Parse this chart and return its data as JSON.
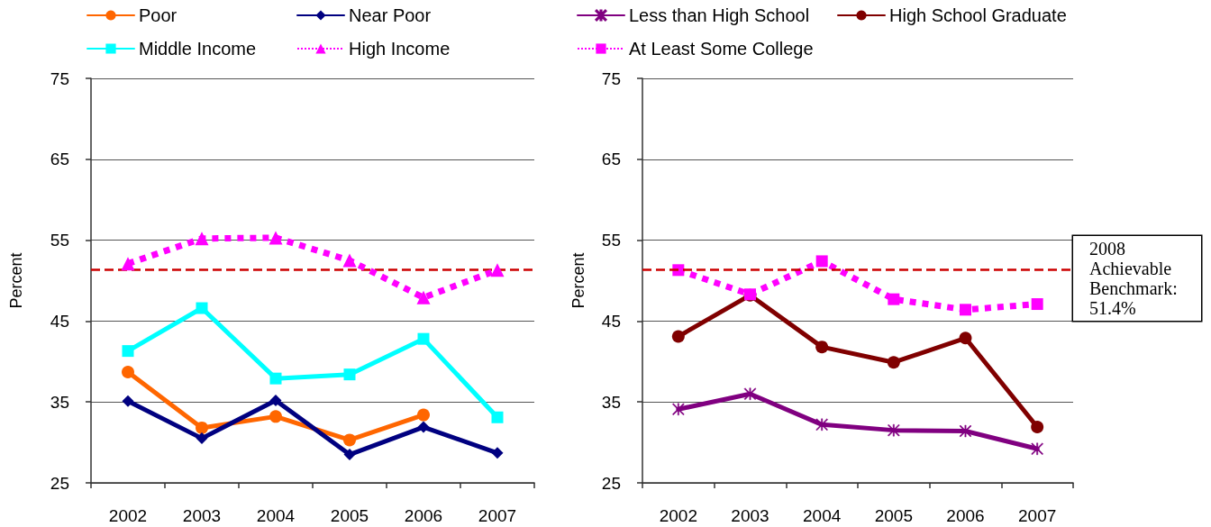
{
  "chart_data": [
    {
      "type": "line",
      "categories": [
        "2002",
        "2003",
        "2004",
        "2005",
        "2006",
        "2007"
      ],
      "ylabel": "Percent",
      "ylim": [
        25,
        75
      ],
      "yticks": [
        25,
        35,
        45,
        55,
        65,
        75
      ],
      "grid": "y",
      "legend": "top",
      "series": [
        {
          "name": "Poor",
          "color": "#ff6600",
          "marker": "circle",
          "values": [
            38.7,
            31.8,
            33.2,
            30.3,
            33.4,
            null
          ]
        },
        {
          "name": "Near Poor",
          "color": "#000080",
          "marker": "diamond",
          "values": [
            35.1,
            30.5,
            35.2,
            28.5,
            31.9,
            28.7
          ]
        },
        {
          "name": "Middle Income",
          "color": "#00ffff",
          "marker": "square",
          "values": [
            41.3,
            46.6,
            37.9,
            38.4,
            42.8,
            33.1
          ]
        },
        {
          "name": "High Income",
          "color": "#ff00ff",
          "marker": "triangle",
          "line_style": "dotted",
          "values": [
            52.1,
            55.2,
            55.3,
            52.5,
            47.9,
            51.3
          ]
        }
      ],
      "ref_lines": [
        {
          "axis": "y",
          "value": 51.4,
          "color": "#cc0000",
          "line_style": "dashed"
        }
      ]
    },
    {
      "type": "line",
      "categories": [
        "2002",
        "2003",
        "2004",
        "2005",
        "2006",
        "2007"
      ],
      "ylabel": "Percent",
      "ylim": [
        25,
        75
      ],
      "yticks": [
        25,
        35,
        45,
        55,
        65,
        75
      ],
      "grid": "y",
      "legend": "top",
      "series": [
        {
          "name": "Less than High School",
          "color": "#800080",
          "marker": "cross",
          "values": [
            34.1,
            36.0,
            32.2,
            31.5,
            31.4,
            29.2
          ]
        },
        {
          "name": "High School Graduate",
          "color": "#800000",
          "marker": "circle",
          "values": [
            43.1,
            48.2,
            41.8,
            39.9,
            42.9,
            31.9
          ]
        },
        {
          "name": "At Least Some College",
          "color": "#ff00ff",
          "marker": "square",
          "line_style": "dotted",
          "values": [
            51.3,
            48.3,
            52.4,
            47.7,
            46.4,
            47.1
          ]
        }
      ],
      "ref_lines": [
        {
          "axis": "y",
          "value": 51.4,
          "color": "#cc0000",
          "line_style": "dashed",
          "label": "2008 Achievable Benchmark: 51.4%"
        }
      ]
    }
  ]
}
